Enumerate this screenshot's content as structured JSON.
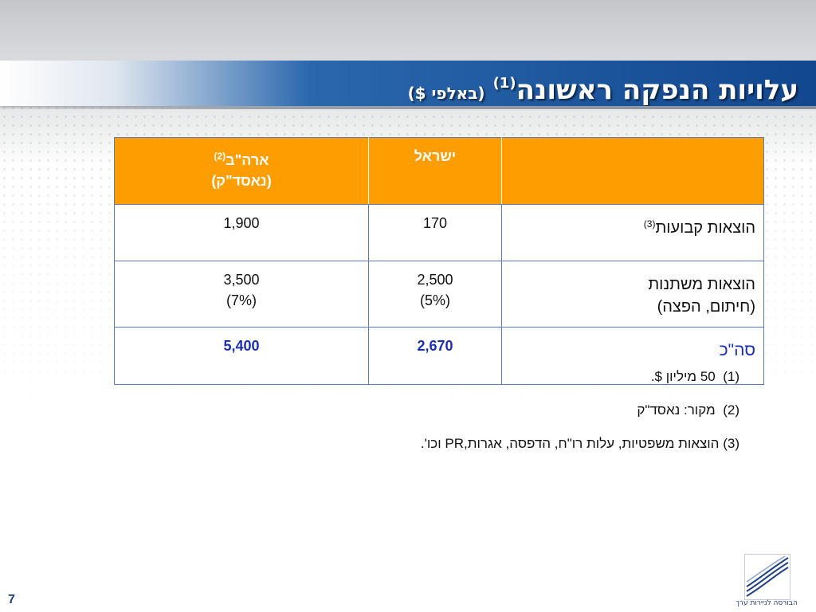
{
  "title": {
    "main": "עלויות הנפקה ראשונה",
    "footnote_mark": "(1)",
    "sub": "(באלפי $)"
  },
  "table": {
    "header": {
      "label": "",
      "israel": "ישראל",
      "usa_line1": "ארה\"ב",
      "usa_mark": "(2)",
      "usa_line2": "(נאסד\"ק)"
    },
    "rows": [
      {
        "label": "הוצאות קבועות",
        "label_mark": "(3)",
        "label_line2": "",
        "israel": "170",
        "israel_line2": "",
        "usa": "1,900",
        "usa_line2": ""
      },
      {
        "label": "הוצאות משתנות",
        "label_mark": "",
        "label_line2": "(חיתום, הפצה)",
        "israel": "2,500",
        "israel_line2": "(5%)",
        "usa": "3,500",
        "usa_line2": "(7%)"
      },
      {
        "label": "סה\"כ",
        "label_mark": "",
        "label_line2": "",
        "israel": "2,670",
        "israel_line2": "",
        "usa": "5,400",
        "usa_line2": ""
      }
    ]
  },
  "notes": [
    {
      "num": "(1)",
      "text": "50 מיליון $."
    },
    {
      "num": "(2)",
      "text": "מקור: נאסד\"ק"
    },
    {
      "num": "(3)",
      "text": "הוצאות משפטיות, עלות רו\"ח, הדפסה, אגרות,PR וכו'."
    }
  ],
  "logo": {
    "icon": "stock-exchange-logo-icon",
    "text": "הבורסה לניירות ערך"
  },
  "page_number": "7",
  "colors": {
    "title_bar": "#12478f",
    "header_fill": "#fd9d00",
    "total_text": "#1a2fb5"
  }
}
